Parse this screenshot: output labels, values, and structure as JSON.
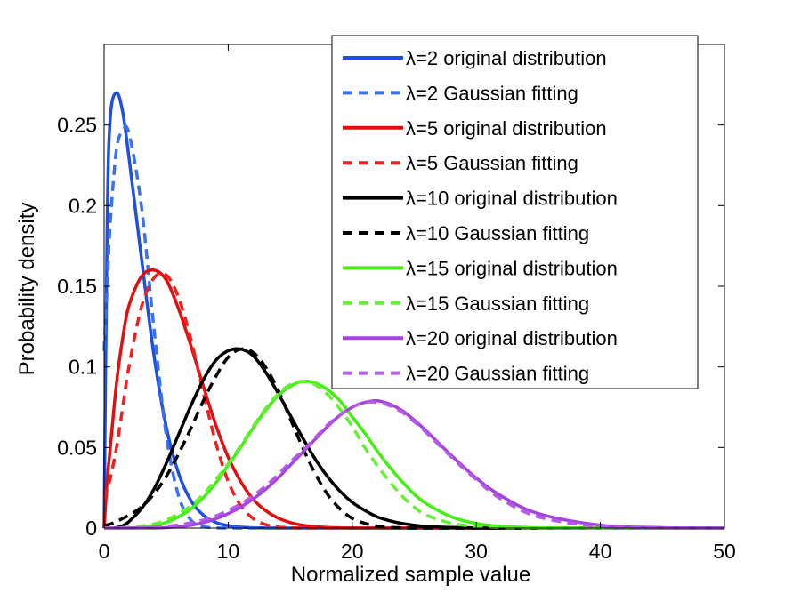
{
  "chart_data": {
    "type": "line",
    "title": "",
    "xlabel": "Normalized sample value",
    "ylabel": "Probability density",
    "xlim": [
      0,
      50
    ],
    "ylim": [
      0,
      0.3
    ],
    "xticks": [
      0,
      10,
      20,
      30,
      40,
      50
    ],
    "xtick_labels": [
      "0",
      "10",
      "20",
      "30",
      "40",
      "50"
    ],
    "yticks": [
      0,
      0.05,
      0.1,
      0.15,
      0.2,
      0.25
    ],
    "ytick_labels": [
      "0",
      "0.05",
      "0.1",
      "0.15",
      "0.2",
      "0.25"
    ],
    "legend_position": "top-right",
    "x": [
      0,
      0.25,
      0.5,
      1,
      1.5,
      2,
      3,
      4,
      5,
      6,
      7,
      8,
      9,
      10,
      11,
      12,
      13,
      14,
      15,
      16,
      17,
      18,
      19,
      20,
      21,
      22,
      23,
      24,
      25,
      26,
      28,
      30,
      32,
      35,
      40,
      45,
      50
    ],
    "series": [
      {
        "name": "λ=2 original distribution",
        "color": "#1f4fe0",
        "style": "solid",
        "values": [
          0,
          0.19,
          0.255,
          0.27,
          0.258,
          0.23,
          0.168,
          0.108,
          0.063,
          0.034,
          0.017,
          0.008,
          0.0035,
          0.0015,
          0.0006,
          0.0002,
          0.0001,
          0,
          0,
          0,
          0,
          0,
          0,
          0,
          0,
          0,
          0,
          0,
          0,
          0,
          0,
          0,
          0,
          0,
          0,
          0,
          0
        ]
      },
      {
        "name": "λ=2 Gaussian fitting",
        "color": "#3a6ff0",
        "style": "dashed",
        "values": [
          0.11,
          0.15,
          0.19,
          0.235,
          0.246,
          0.245,
          0.2,
          0.125,
          0.058,
          0.02,
          0.005,
          0.001,
          0.0002,
          0,
          0,
          0,
          0,
          0,
          0,
          0,
          0,
          0,
          0,
          0,
          0,
          0,
          0,
          0,
          0,
          0,
          0,
          0,
          0,
          0,
          0,
          0,
          0
        ]
      },
      {
        "name": "λ=5 original distribution",
        "color": "#e01010",
        "style": "solid",
        "values": [
          0,
          0.03,
          0.05,
          0.09,
          0.118,
          0.138,
          0.156,
          0.16,
          0.154,
          0.136,
          0.113,
          0.088,
          0.064,
          0.044,
          0.029,
          0.018,
          0.011,
          0.0063,
          0.0035,
          0.0018,
          0.0009,
          0.0004,
          0.0002,
          0,
          0,
          0,
          0,
          0,
          0,
          0,
          0,
          0,
          0,
          0,
          0,
          0,
          0
        ]
      },
      {
        "name": "λ=5 Gaussian fitting",
        "color": "#ee2020",
        "style": "dashed",
        "values": [
          0.018,
          0.024,
          0.031,
          0.05,
          0.075,
          0.1,
          0.137,
          0.155,
          0.157,
          0.143,
          0.117,
          0.084,
          0.053,
          0.029,
          0.014,
          0.006,
          0.0022,
          0.0007,
          0.0002,
          0,
          0,
          0,
          0,
          0,
          0,
          0,
          0,
          0,
          0,
          0,
          0,
          0,
          0,
          0,
          0,
          0,
          0
        ]
      },
      {
        "name": "λ=10 original distribution",
        "color": "#000000",
        "style": "solid",
        "values": [
          0,
          0,
          0,
          0.0003,
          0.0015,
          0.004,
          0.012,
          0.024,
          0.04,
          0.058,
          0.076,
          0.092,
          0.104,
          0.11,
          0.111,
          0.107,
          0.097,
          0.084,
          0.07,
          0.056,
          0.043,
          0.032,
          0.023,
          0.016,
          0.011,
          0.007,
          0.0046,
          0.0029,
          0.0018,
          0.001,
          0.0004,
          0.0001,
          0,
          0,
          0,
          0,
          0
        ]
      },
      {
        "name": "λ=10 Gaussian fitting",
        "color": "#000000",
        "style": "dashed",
        "values": [
          0.0015,
          0.002,
          0.0025,
          0.004,
          0.006,
          0.008,
          0.013,
          0.021,
          0.032,
          0.046,
          0.062,
          0.079,
          0.094,
          0.106,
          0.111,
          0.109,
          0.1,
          0.086,
          0.068,
          0.05,
          0.034,
          0.021,
          0.012,
          0.006,
          0.003,
          0.0013,
          0.0005,
          0.0002,
          0,
          0,
          0,
          0,
          0,
          0,
          0,
          0,
          0
        ]
      },
      {
        "name": "λ=15 original distribution",
        "color": "#44ee11",
        "style": "solid",
        "values": [
          0,
          0,
          0,
          0,
          0,
          0,
          0.0005,
          0.0015,
          0.0035,
          0.007,
          0.012,
          0.019,
          0.028,
          0.039,
          0.05,
          0.062,
          0.073,
          0.082,
          0.088,
          0.091,
          0.09,
          0.086,
          0.079,
          0.069,
          0.059,
          0.048,
          0.038,
          0.029,
          0.021,
          0.015,
          0.007,
          0.0029,
          0.0011,
          0.0002,
          0,
          0,
          0
        ]
      },
      {
        "name": "λ=15 Gaussian fitting",
        "color": "#66f033",
        "style": "dashed",
        "values": [
          0,
          0,
          0,
          0,
          0.0003,
          0.0005,
          0.0012,
          0.0025,
          0.005,
          0.009,
          0.014,
          0.021,
          0.03,
          0.04,
          0.051,
          0.063,
          0.074,
          0.083,
          0.089,
          0.091,
          0.089,
          0.083,
          0.074,
          0.063,
          0.05,
          0.039,
          0.029,
          0.02,
          0.013,
          0.008,
          0.003,
          0.001,
          0.0003,
          0,
          0,
          0,
          0
        ]
      },
      {
        "name": "λ=20 original distribution",
        "color": "#a642e0",
        "style": "solid",
        "values": [
          0,
          0,
          0,
          0,
          0,
          0,
          0,
          0,
          0.0003,
          0.0008,
          0.0018,
          0.0034,
          0.0058,
          0.009,
          0.013,
          0.018,
          0.024,
          0.031,
          0.039,
          0.047,
          0.055,
          0.063,
          0.07,
          0.075,
          0.078,
          0.079,
          0.077,
          0.073,
          0.067,
          0.06,
          0.045,
          0.031,
          0.02,
          0.009,
          0.0018,
          0.0003,
          0
        ]
      },
      {
        "name": "λ=20 Gaussian fitting",
        "color": "#b45ae8",
        "style": "dashed",
        "values": [
          0,
          0,
          0,
          0,
          0,
          0,
          0.0003,
          0.0006,
          0.0011,
          0.002,
          0.0033,
          0.005,
          0.0075,
          0.011,
          0.015,
          0.02,
          0.026,
          0.033,
          0.041,
          0.048,
          0.056,
          0.064,
          0.07,
          0.075,
          0.078,
          0.078,
          0.076,
          0.072,
          0.066,
          0.059,
          0.044,
          0.03,
          0.018,
          0.007,
          0.0008,
          0,
          0
        ]
      }
    ]
  }
}
